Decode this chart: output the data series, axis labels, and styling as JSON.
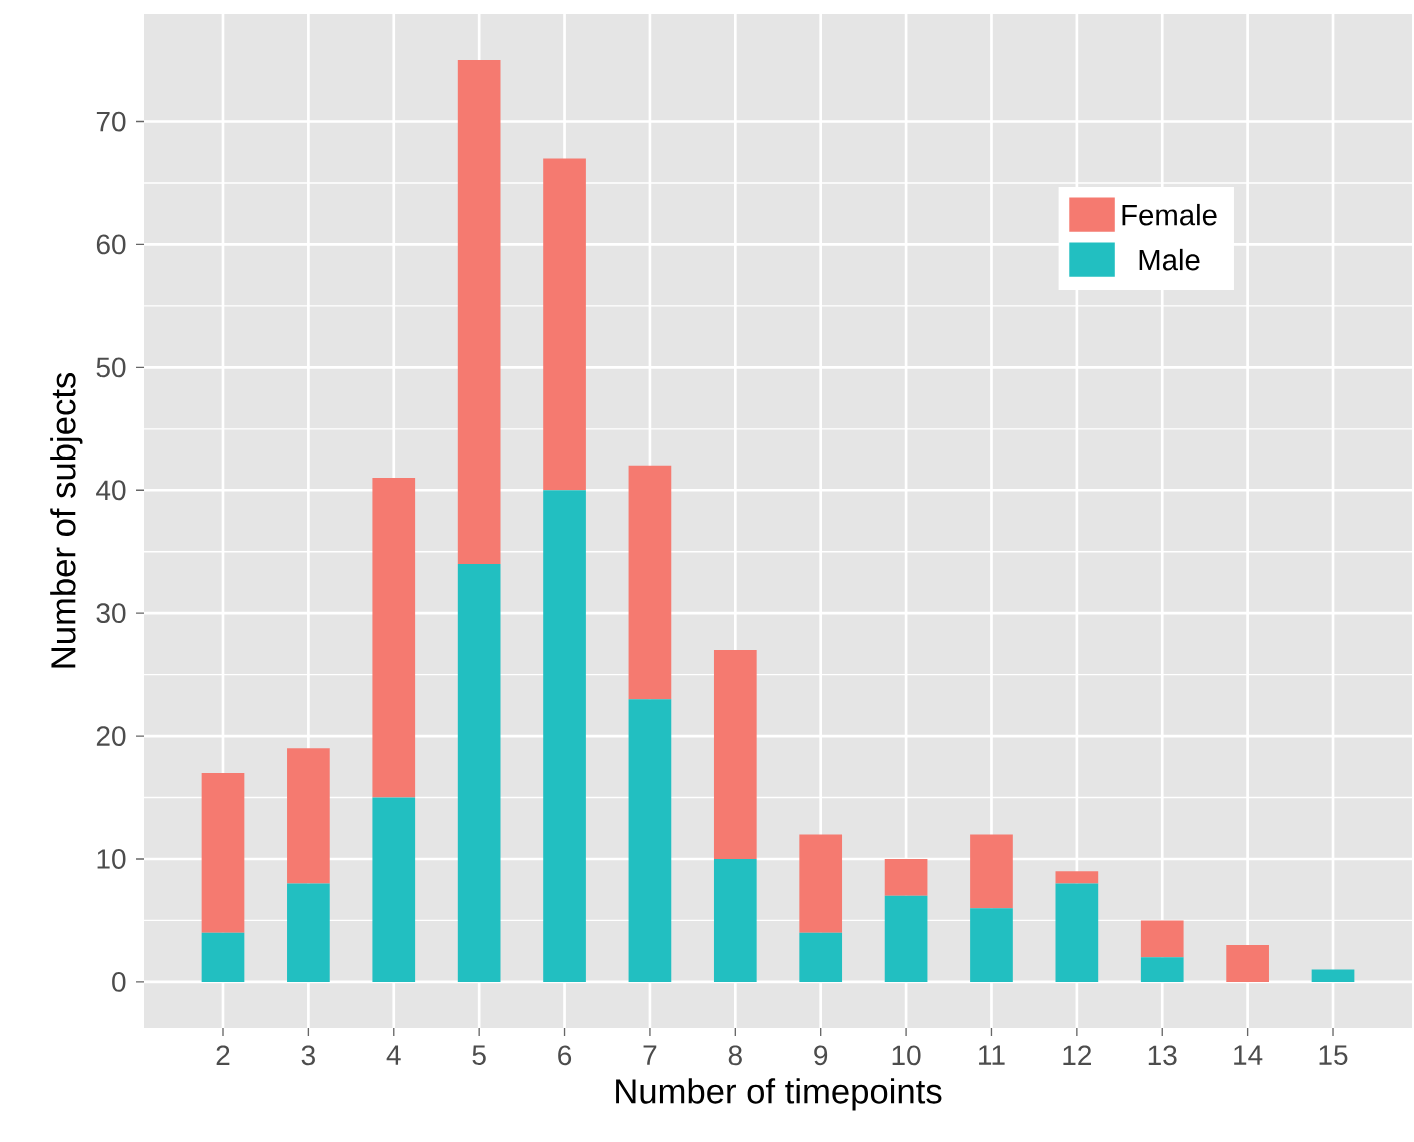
{
  "chart_data": {
    "type": "bar",
    "stacked": true,
    "xlabel": "Number of timepoints",
    "ylabel": "Number of subjects",
    "categories": [
      "2",
      "3",
      "4",
      "5",
      "6",
      "7",
      "8",
      "9",
      "10",
      "11",
      "12",
      "13",
      "14",
      "15"
    ],
    "series": [
      {
        "name": "Male",
        "color": "#22bfc1",
        "values": [
          4,
          8,
          15,
          34,
          40,
          23,
          10,
          4,
          7,
          6,
          8,
          2,
          0,
          1
        ]
      },
      {
        "name": "Female",
        "color": "#f57a70",
        "values": [
          13,
          11,
          26,
          41,
          27,
          19,
          17,
          8,
          3,
          6,
          1,
          3,
          3,
          0
        ]
      }
    ],
    "ylim": [
      -3.75,
      78.75
    ],
    "yticks": [
      0,
      10,
      20,
      30,
      40,
      50,
      60,
      70
    ],
    "grid": true,
    "legend": "top right"
  }
}
